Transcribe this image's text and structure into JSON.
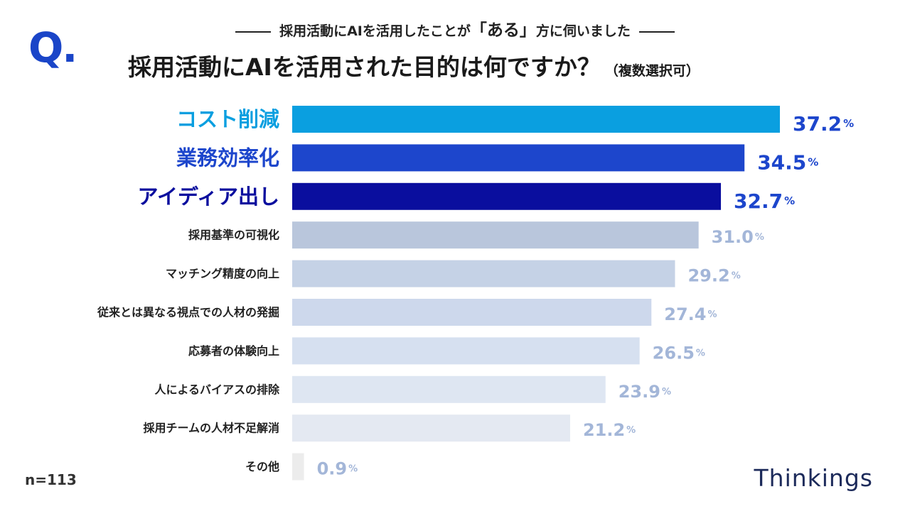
{
  "question_mark": "Q.",
  "subtitle": {
    "before": "採用活動にAIを活用したことが",
    "emphasis": "「ある」",
    "after": "方に伺いました"
  },
  "title": {
    "main": "採用活動にAIを活用された目的は何ですか？",
    "note": "（複数選択可）"
  },
  "sample_size": "n=113",
  "logo": "Thinkings",
  "colors": {
    "accent": "#1a45c8",
    "bars": [
      "#0a9fe0",
      "#1d46cc",
      "#0a0e9e",
      "#b9c6dc",
      "#c5d2e6",
      "#cdd8ec",
      "#d6e0f0",
      "#dee6f2",
      "#e4e9f2",
      "#ececec"
    ],
    "labels": [
      "#0a9fe0",
      "#1d46cc",
      "#0a0e9e",
      "#222222",
      "#222222",
      "#222222",
      "#222222",
      "#222222",
      "#222222",
      "#222222"
    ],
    "values": [
      "#1d46cc",
      "#1d46cc",
      "#1d46cc",
      "#a3b6d8",
      "#a3b6d8",
      "#a3b6d8",
      "#a3b6d8",
      "#a3b6d8",
      "#a3b6d8",
      "#a3b6d8"
    ]
  },
  "chart_data": {
    "type": "bar",
    "orientation": "horizontal",
    "title": "採用活動にAIを活用された目的は何ですか？",
    "categories": [
      "コスト削減",
      "業務効率化",
      "アイディア出し",
      "採用基準の可視化",
      "マッチング精度の向上",
      "従来とは異なる視点での人材の発掘",
      "応募者の体験向上",
      "人によるバイアスの排除",
      "採用チームの人材不足解消",
      "その他"
    ],
    "values": [
      37.2,
      34.5,
      32.7,
      31.0,
      29.2,
      27.4,
      26.5,
      23.9,
      21.2,
      0.9
    ],
    "value_labels": [
      "37.2",
      "34.5",
      "32.7",
      "31.0",
      "29.2",
      "27.4",
      "26.5",
      "23.9",
      "21.2",
      "0.9"
    ],
    "unit": "%",
    "highlight_top": 3,
    "xlabel": "",
    "ylabel": ""
  }
}
